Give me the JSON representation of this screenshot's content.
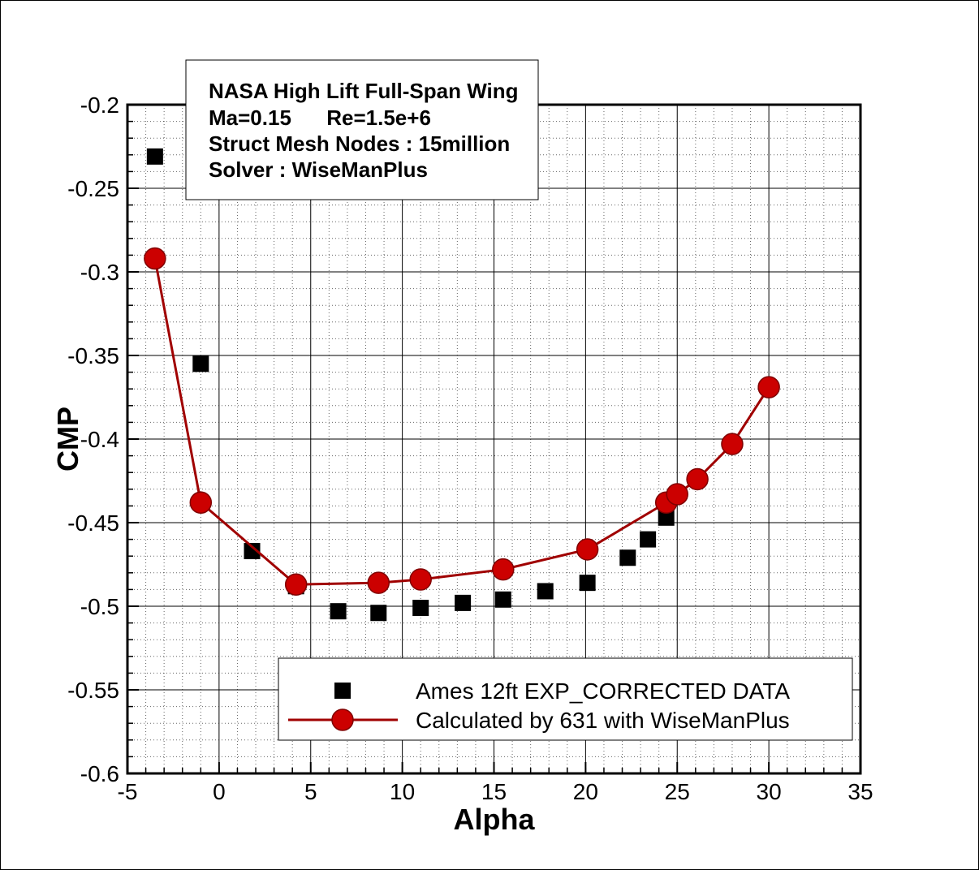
{
  "chart_data": {
    "type": "scatter",
    "xlabel": "Alpha",
    "ylabel": "CMP",
    "xlim": [
      -5,
      35
    ],
    "ylim": [
      -0.6,
      -0.2
    ],
    "x_ticks": [
      -5,
      0,
      5,
      10,
      15,
      20,
      25,
      30,
      35
    ],
    "x_tick_labels": [
      "-5",
      "0",
      "5",
      "10",
      "15",
      "20",
      "25",
      "30",
      "35"
    ],
    "y_ticks": [
      -0.6,
      -0.55,
      -0.5,
      -0.45,
      -0.4,
      -0.35,
      -0.3,
      -0.25,
      -0.2
    ],
    "y_tick_labels": [
      "-0.6",
      "-0.55",
      "-0.5",
      "-0.45",
      "-0.4",
      "-0.35",
      "-0.3",
      "-0.25",
      "-0.2"
    ],
    "grid": true,
    "info_box": [
      "NASA High Lift Full-Span Wing",
      "Ma=0.15      Re=1.5e+6",
      "Struct Mesh Nodes : 15million",
      "Solver : WiseManPlus"
    ],
    "legend_position": "bottom-right",
    "series": [
      {
        "name": "Ames 12ft EXP_CORRECTED DATA",
        "marker": "square",
        "line": false,
        "color": "#000000",
        "x": [
          -3.5,
          -1.0,
          1.8,
          4.2,
          6.5,
          8.7,
          11.0,
          13.3,
          15.5,
          17.8,
          20.1,
          22.3,
          23.4,
          24.4
        ],
        "y": [
          -0.231,
          -0.355,
          -0.467,
          -0.488,
          -0.503,
          -0.504,
          -0.501,
          -0.498,
          -0.496,
          -0.491,
          -0.486,
          -0.471,
          -0.46,
          -0.447
        ]
      },
      {
        "name": "Calculated by 631 with WiseManPlus",
        "marker": "circle",
        "line": true,
        "color": "#cc0000",
        "line_color": "#a00000",
        "x": [
          -3.5,
          -1.0,
          4.2,
          8.7,
          11.0,
          15.5,
          20.1,
          24.4,
          25.0,
          26.1,
          28.0,
          30.0
        ],
        "y": [
          -0.292,
          -0.438,
          -0.487,
          -0.486,
          -0.484,
          -0.478,
          -0.466,
          -0.438,
          -0.433,
          -0.424,
          -0.403,
          -0.369
        ]
      }
    ]
  }
}
